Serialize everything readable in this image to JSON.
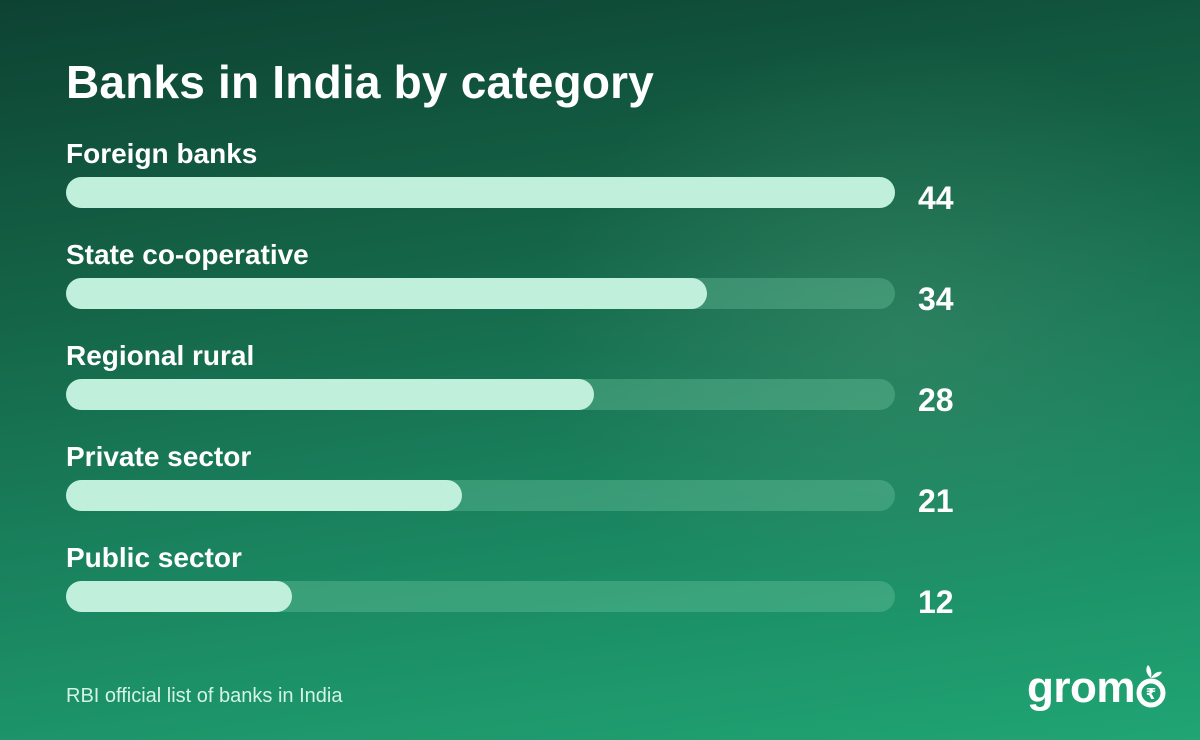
{
  "chart_data": {
    "type": "bar",
    "orientation": "horizontal",
    "title": "Banks in India by category",
    "categories": [
      "Foreign banks",
      "State co-operative",
      "Regional rural",
      "Private sector",
      "Public sector"
    ],
    "values": [
      44,
      34,
      28,
      21,
      12
    ],
    "xlim": [
      0,
      44
    ],
    "grid": false,
    "colors": {
      "fill": "#c0efdb",
      "track": "#3a8a6c"
    }
  },
  "footer": {
    "source": "RBI official list of banks in India"
  },
  "logo": {
    "wordmark": "gromo",
    "icon": "rupee-sprout-icon"
  }
}
